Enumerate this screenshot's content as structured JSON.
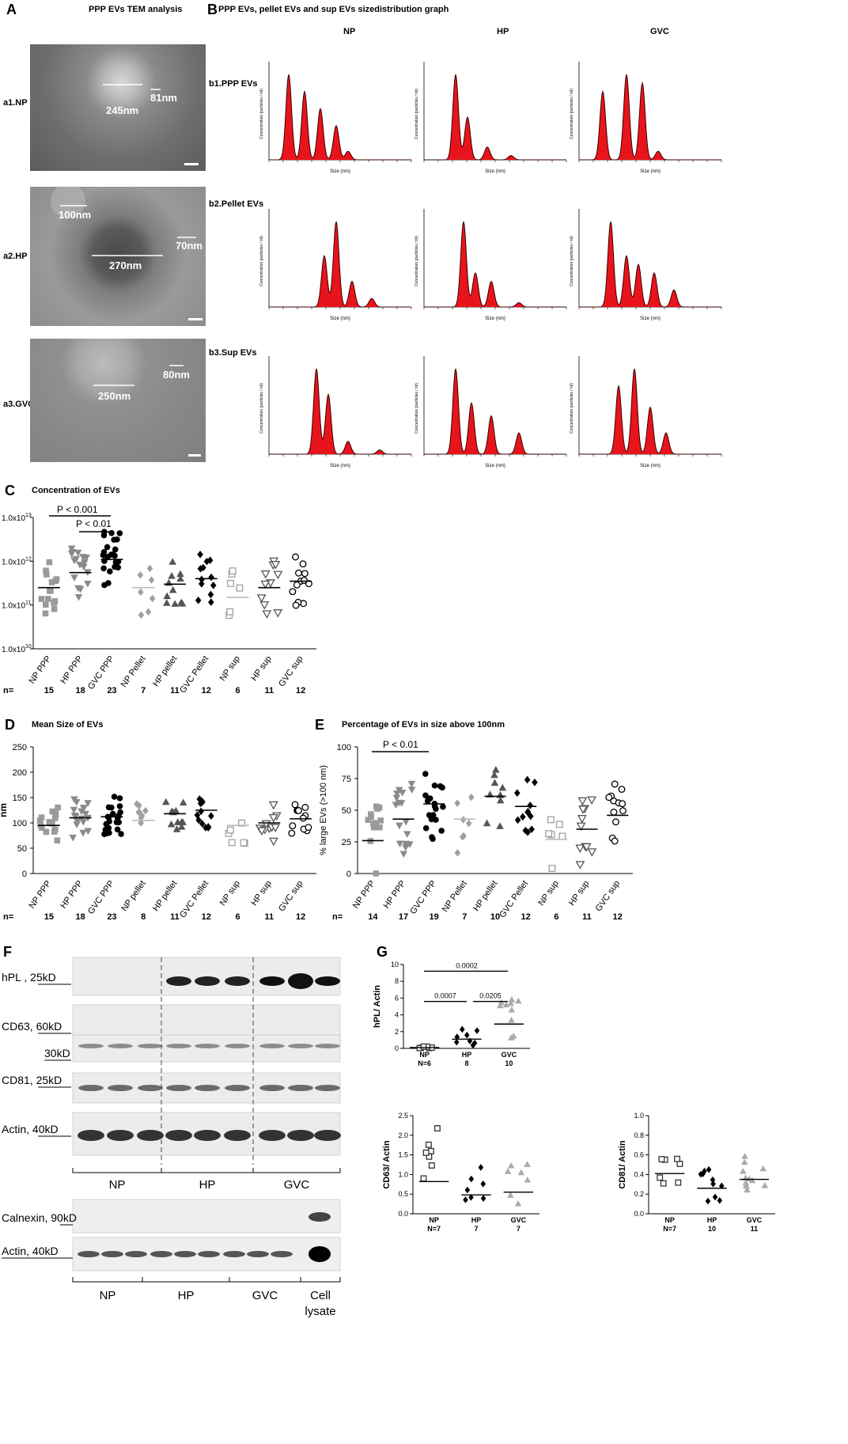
{
  "panelA": {
    "label": "A",
    "title": "PPP EVs TEM analysis",
    "images": [
      {
        "row": "a1.NP",
        "lines": [
          "245nm",
          "81nm"
        ]
      },
      {
        "row": "a2.HP",
        "lines": [
          "100nm",
          "270nm",
          "70nm"
        ]
      },
      {
        "row": "a3.GVC",
        "lines": [
          "250nm",
          "80nm"
        ]
      }
    ]
  },
  "panelB": {
    "label": "B",
    "title": "PPP EVs, pellet EVs and sup EVs sizedistribution graph",
    "columns": [
      "NP",
      "HP",
      "GVC"
    ],
    "rows": [
      "b1.PPP EVs",
      "b2.Pellet EVs",
      "b3.Sup EVs"
    ],
    "xlabel": "Size (nm)",
    "ylabel": "Concentration (particles / ml)"
  },
  "panelC": {
    "label": "C",
    "title": "Concentration of EVs",
    "yticks": [
      "1.0x10",
      "1.0x10",
      "1.0x10",
      "1.0x10"
    ],
    "yexp": [
      "13",
      "12",
      "11",
      "10"
    ],
    "pvals": [
      "P < 0.001",
      "P < 0.01"
    ],
    "groups": [
      "NP PPP",
      "HP PPP",
      "GVC PPP",
      "NP Pellet",
      "HP pellet",
      "GVC Pellet",
      "NP sup",
      "HP sup",
      "GVC sup"
    ],
    "nlabel": "n=",
    "n": [
      "15",
      "18",
      "23",
      "7",
      "11",
      "12",
      "6",
      "11",
      "12"
    ]
  },
  "panelD": {
    "label": "D",
    "title": "Mean Size of EVs",
    "ylabel": "nm",
    "yticks": [
      "250",
      "200",
      "150",
      "100",
      "50",
      "0"
    ],
    "groups": [
      "NP PPP",
      "HP PPP",
      "GVC PPP",
      "NP pellet",
      "HP pellet",
      "GVC Pellet",
      "NP sup",
      "HP sup",
      "GVC sup"
    ],
    "nlabel": "n=",
    "n": [
      "15",
      "18",
      "23",
      "8",
      "11",
      "12",
      "6",
      "11",
      "12"
    ]
  },
  "panelE": {
    "label": "E",
    "title": "Percentage of EVs in size above 100nm",
    "ylabel": "% large EVs (>100 nm)",
    "yticks": [
      "100",
      "75",
      "50",
      "25",
      "0"
    ],
    "pval": "P < 0.01",
    "groups": [
      "NP PPP",
      "HP PPP",
      "GVC PPP",
      "NP Pellet",
      "HP pellet",
      "GVC Pellet",
      "NP sup",
      "HP sup",
      "GVC sup"
    ],
    "nlabel": "n=",
    "n": [
      "14",
      "17",
      "19",
      "7",
      "10",
      "12",
      "6",
      "11",
      "12"
    ]
  },
  "panelF": {
    "label": "F",
    "bands": [
      "hPL , 25kD",
      "CD63, 60kD",
      "30kD",
      "CD81, 25kD",
      "Actin, 40kD"
    ],
    "groups1": [
      "NP",
      "HP",
      "GVC"
    ],
    "bands2": [
      "Calnexin, 90kD",
      "Actin, 40kD"
    ],
    "groups2": [
      "NP",
      "HP",
      "GVC",
      "Cell lysate"
    ]
  },
  "panelG": {
    "label": "G",
    "hpl": {
      "ylabel": "hPL/ Actin",
      "yticks": [
        "10",
        "8",
        "6",
        "4",
        "2",
        "0"
      ],
      "pvals": [
        "0.0002",
        "0.0007",
        "0.0205"
      ],
      "groups": [
        "NP",
        "HP",
        "GVC"
      ],
      "n": [
        "N=6",
        "8",
        "10"
      ]
    },
    "cd63": {
      "ylabel": "CD63/ Actin",
      "yticks": [
        "2.5",
        "2.0",
        "1.5",
        "1.0",
        "0.5",
        "0.0"
      ],
      "groups": [
        "NP",
        "HP",
        "GVC"
      ],
      "n": [
        "N=7",
        "7",
        "7"
      ]
    },
    "cd81": {
      "ylabel": "CD81/ Actin",
      "yticks": [
        "1.0",
        "0.8",
        "0.6",
        "0.4",
        "0.2",
        "0.0"
      ],
      "groups": [
        "NP",
        "HP",
        "GVC"
      ],
      "n": [
        "N=7",
        "10",
        "11"
      ]
    }
  },
  "chart_data": [
    {
      "type": "scatter",
      "title": "Concentration of EVs",
      "categories": [
        "NP PPP",
        "HP PPP",
        "GVC PPP",
        "NP Pellet",
        "HP pellet",
        "GVC Pellet",
        "NP sup",
        "HP sup",
        "GVC sup"
      ],
      "yscale": "log",
      "ylim": [
        10000000000.0,
        10000000000000.0
      ],
      "medians": [
        250000000000.0,
        550000000000.0,
        1100000000000.0,
        250000000000.0,
        300000000000.0,
        400000000000.0,
        150000000000.0,
        250000000000.0,
        350000000000.0
      ]
    },
    {
      "type": "scatter",
      "title": "Mean Size of EVs",
      "categories": [
        "NP PPP",
        "HP PPP",
        "GVC PPP",
        "NP pellet",
        "HP pellet",
        "GVC Pellet",
        "NP sup",
        "HP sup",
        "GVC sup"
      ],
      "ylabel": "nm",
      "ylim": [
        0,
        250
      ],
      "medians": [
        95,
        110,
        112,
        105,
        118,
        125,
        95,
        100,
        108
      ]
    },
    {
      "type": "scatter",
      "title": "Percentage of EVs in size above 100nm",
      "categories": [
        "NP PPP",
        "HP PPP",
        "GVC PPP",
        "NP Pellet",
        "HP pellet",
        "GVC Pellet",
        "NP sup",
        "HP sup",
        "GVC sup"
      ],
      "ylabel": "% large EVs (>100 nm)",
      "ylim": [
        0,
        100
      ],
      "medians": [
        26,
        43,
        55,
        43,
        61,
        53,
        27,
        35,
        46
      ]
    },
    {
      "type": "scatter",
      "title": "hPL/ Actin",
      "categories": [
        "NP",
        "HP",
        "GVC"
      ],
      "ylim": [
        0,
        10
      ],
      "medians": [
        0.1,
        1.1,
        2.9
      ]
    },
    {
      "type": "scatter",
      "title": "CD63/ Actin",
      "categories": [
        "NP",
        "HP",
        "GVC"
      ],
      "ylim": [
        0,
        2.5
      ],
      "medians": [
        0.82,
        0.48,
        0.55
      ]
    },
    {
      "type": "scatter",
      "title": "CD81/ Actin",
      "categories": [
        "NP",
        "HP",
        "GVC"
      ],
      "ylim": [
        0,
        1.0
      ],
      "medians": [
        0.41,
        0.26,
        0.35
      ]
    }
  ]
}
